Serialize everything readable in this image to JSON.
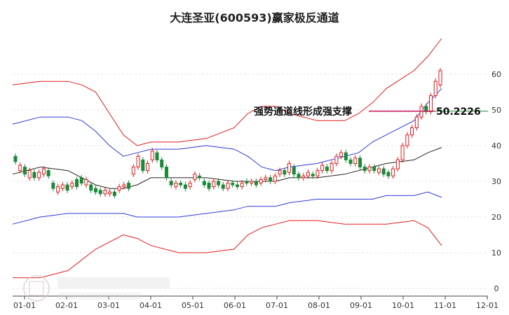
{
  "chart_data": {
    "type": "line",
    "title": "大连圣亚(600593)赢家极反通道",
    "x_tick_labels": [
      "01-01",
      "02-01",
      "03-01",
      "04-01",
      "05-01",
      "06-01",
      "07-01",
      "08-01",
      "09-01",
      "10-01",
      "11-01",
      "12-01"
    ],
    "y_ticks": [
      0,
      10,
      20,
      30,
      40,
      50,
      60
    ],
    "ylim": [
      0,
      66
    ],
    "annotation": {
      "text": "强势通道线形成强支撑",
      "value": "50.2226",
      "level": 50.2226
    },
    "series": [
      {
        "name": "",
        "color": "#e31a1c",
        "values": [
          [
            1,
            57
          ],
          [
            3,
            58
          ],
          [
            5,
            58
          ],
          [
            6,
            57
          ],
          [
            7,
            55
          ],
          [
            8,
            49
          ],
          [
            9,
            43
          ],
          [
            10,
            40
          ],
          [
            11,
            41
          ],
          [
            13,
            41
          ],
          [
            15,
            42
          ],
          [
            17,
            45
          ],
          [
            18,
            49
          ],
          [
            19,
            51
          ],
          [
            20,
            51
          ],
          [
            21,
            49
          ],
          [
            23,
            47
          ],
          [
            25,
            47
          ],
          [
            26,
            49
          ],
          [
            27,
            52
          ],
          [
            28,
            56
          ],
          [
            30,
            61
          ],
          [
            31,
            65
          ],
          [
            32,
            70
          ]
        ]
      },
      {
        "name": "",
        "color": "#2b3bd8",
        "values": [
          [
            1,
            46
          ],
          [
            3,
            48
          ],
          [
            5,
            48
          ],
          [
            6,
            47
          ],
          [
            7,
            44
          ],
          [
            8,
            40
          ],
          [
            9,
            37
          ],
          [
            10,
            38
          ],
          [
            11,
            39
          ],
          [
            13,
            39
          ],
          [
            15,
            40
          ],
          [
            17,
            39
          ],
          [
            18,
            37
          ],
          [
            19,
            34
          ],
          [
            20,
            33
          ],
          [
            21,
            34
          ],
          [
            23,
            35
          ],
          [
            25,
            37
          ],
          [
            26,
            38
          ],
          [
            27,
            41
          ],
          [
            28,
            43
          ],
          [
            30,
            47
          ],
          [
            31,
            52
          ],
          [
            32,
            56
          ]
        ]
      },
      {
        "name": "",
        "color": "#222222",
        "values": [
          [
            1,
            32
          ],
          [
            3,
            34
          ],
          [
            5,
            33
          ],
          [
            6,
            31
          ],
          [
            7,
            29
          ],
          [
            8,
            28
          ],
          [
            9,
            28
          ],
          [
            10,
            29
          ],
          [
            11,
            31
          ],
          [
            13,
            31
          ],
          [
            15,
            31
          ],
          [
            17,
            30
          ],
          [
            18,
            30
          ],
          [
            19,
            30
          ],
          [
            20,
            30
          ],
          [
            21,
            31
          ],
          [
            23,
            31
          ],
          [
            25,
            32
          ],
          [
            26,
            33
          ],
          [
            27,
            34
          ],
          [
            28,
            35
          ],
          [
            30,
            36
          ],
          [
            31,
            38
          ],
          [
            32,
            39.5
          ]
        ]
      },
      {
        "name": "",
        "color": "#2b3bd8",
        "values": [
          [
            1,
            18
          ],
          [
            3,
            20
          ],
          [
            5,
            21
          ],
          [
            6,
            21
          ],
          [
            7,
            21
          ],
          [
            8,
            21
          ],
          [
            9,
            21
          ],
          [
            10,
            20
          ],
          [
            11,
            20
          ],
          [
            13,
            20
          ],
          [
            15,
            21
          ],
          [
            17,
            22
          ],
          [
            18,
            23
          ],
          [
            19,
            23
          ],
          [
            20,
            23
          ],
          [
            21,
            24
          ],
          [
            23,
            25
          ],
          [
            25,
            25
          ],
          [
            26,
            25
          ],
          [
            27,
            25
          ],
          [
            28,
            26
          ],
          [
            30,
            26
          ],
          [
            31,
            27
          ],
          [
            32,
            25.5
          ]
        ]
      },
      {
        "name": "",
        "color": "#e31a1c",
        "values": [
          [
            1,
            3
          ],
          [
            3,
            3
          ],
          [
            5,
            5
          ],
          [
            6,
            8
          ],
          [
            7,
            11
          ],
          [
            8,
            13
          ],
          [
            9,
            15
          ],
          [
            10,
            14
          ],
          [
            11,
            12
          ],
          [
            13,
            10
          ],
          [
            15,
            10
          ],
          [
            17,
            11
          ],
          [
            18,
            15
          ],
          [
            19,
            17
          ],
          [
            20,
            18
          ],
          [
            21,
            19
          ],
          [
            23,
            19
          ],
          [
            25,
            18
          ],
          [
            26,
            18
          ],
          [
            27,
            18
          ],
          [
            28,
            18
          ],
          [
            30,
            19
          ],
          [
            31,
            17
          ],
          [
            32,
            12
          ]
        ]
      }
    ],
    "candles": [
      [
        1,
        37,
        35.5
      ],
      [
        2,
        33,
        34.5
      ],
      [
        3,
        34,
        32
      ],
      [
        4,
        31,
        33
      ],
      [
        5,
        32.5,
        31
      ],
      [
        6,
        31,
        32.5
      ],
      [
        7,
        32,
        33.5
      ],
      [
        8,
        33,
        31.5
      ],
      [
        9,
        29.5,
        28
      ],
      [
        10,
        27,
        28.5
      ],
      [
        11,
        28,
        29
      ],
      [
        12,
        29,
        27.5
      ],
      [
        13,
        28.5,
        29.5
      ],
      [
        14,
        30.5,
        28.5
      ],
      [
        15,
        31,
        29.5
      ],
      [
        16,
        29,
        30.5
      ],
      [
        17,
        29,
        27.5
      ],
      [
        18,
        28,
        27
      ],
      [
        19,
        27.5,
        26.5
      ],
      [
        20,
        26.5,
        27.5
      ],
      [
        21,
        26.5,
        27
      ],
      [
        22,
        27,
        26
      ],
      [
        23,
        27.5,
        28.5
      ],
      [
        24,
        28.5,
        29
      ],
      [
        25,
        29.5,
        28
      ],
      [
        26,
        32,
        34
      ],
      [
        27,
        34,
        37
      ],
      [
        28,
        36,
        33
      ],
      [
        29,
        33,
        35
      ],
      [
        30,
        36,
        38.5
      ],
      [
        31,
        38,
        36
      ],
      [
        32,
        36,
        34
      ],
      [
        33,
        34,
        31
      ],
      [
        34,
        30,
        29
      ],
      [
        35,
        28.5,
        29.5
      ],
      [
        36,
        29.5,
        29
      ],
      [
        37,
        29,
        28
      ],
      [
        38,
        28.5,
        29.5
      ],
      [
        39,
        30.5,
        32
      ],
      [
        40,
        31.5,
        31
      ],
      [
        41,
        30,
        29
      ],
      [
        42,
        29.5,
        28
      ],
      [
        43,
        28.5,
        30
      ],
      [
        44,
        30,
        29
      ],
      [
        45,
        29,
        28
      ],
      [
        46,
        28,
        29.5
      ],
      [
        47,
        29.5,
        29
      ],
      [
        48,
        29,
        28.5
      ],
      [
        49,
        28.5,
        29.5
      ],
      [
        50,
        30,
        29.5
      ],
      [
        51,
        29.5,
        30
      ],
      [
        52,
        30,
        29
      ],
      [
        53,
        29.5,
        30.5
      ],
      [
        54,
        30.5,
        31
      ],
      [
        55,
        31,
        30
      ],
      [
        56,
        30,
        31.5
      ],
      [
        57,
        32,
        33
      ],
      [
        58,
        33,
        32
      ],
      [
        59,
        32.5,
        35
      ],
      [
        60,
        34,
        32
      ],
      [
        61,
        32,
        31
      ],
      [
        62,
        31,
        31.5
      ],
      [
        63,
        31.5,
        32.5
      ],
      [
        64,
        32,
        31.5
      ],
      [
        65,
        31.5,
        33
      ],
      [
        66,
        33,
        34.5
      ],
      [
        67,
        34,
        33
      ],
      [
        68,
        33,
        35
      ],
      [
        69,
        35,
        37
      ],
      [
        70,
        37,
        38
      ],
      [
        71,
        38,
        36
      ],
      [
        72,
        36,
        35
      ],
      [
        73,
        35,
        36.5
      ],
      [
        74,
        36.5,
        34
      ],
      [
        75,
        34,
        33
      ],
      [
        76,
        33,
        34
      ],
      [
        77,
        34,
        33
      ],
      [
        78,
        32.5,
        33.5
      ],
      [
        79,
        33.5,
        32
      ],
      [
        80,
        32.5,
        31.5
      ],
      [
        81,
        31.5,
        33.5
      ],
      [
        82,
        33.5,
        36
      ],
      [
        83,
        36,
        40
      ],
      [
        84,
        40,
        43
      ],
      [
        85,
        43,
        45
      ],
      [
        86,
        45,
        48
      ],
      [
        87,
        48,
        51
      ],
      [
        88,
        51,
        49.5
      ],
      [
        89,
        49.5,
        54
      ],
      [
        90,
        54,
        58
      ],
      [
        91,
        57,
        61
      ]
    ]
  }
}
